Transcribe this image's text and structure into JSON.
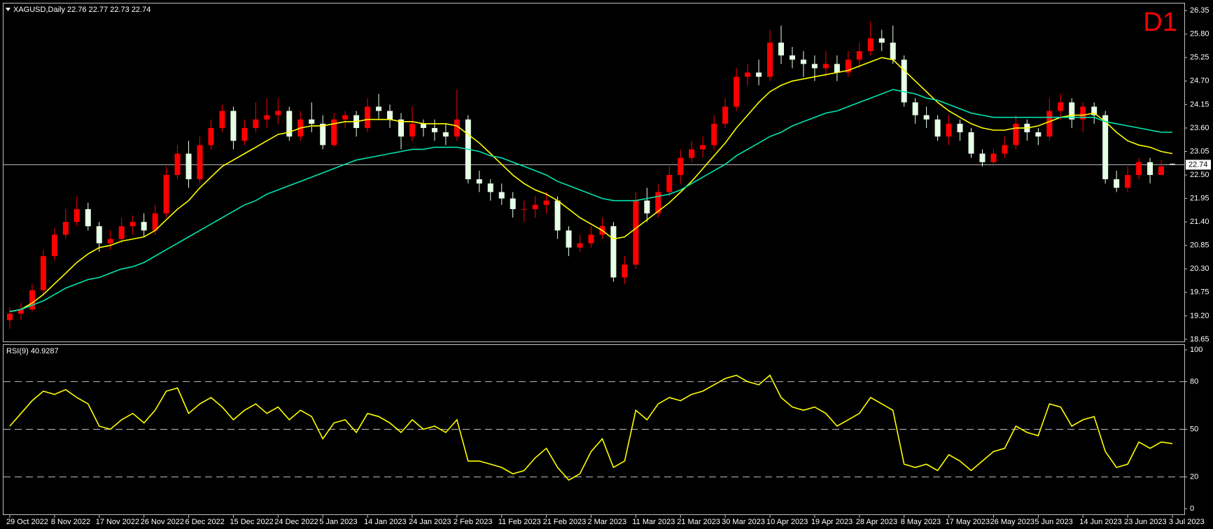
{
  "chart_data": [
    {
      "type": "candlestick",
      "title": "XAGUSD,Daily",
      "header_values": [
        22.76,
        22.77,
        22.73,
        22.74
      ],
      "timeframe": "D1",
      "up_color": "#ff0000",
      "down_color": "#e6ffe6",
      "last_price": 22.74,
      "ylim": [
        18.6,
        26.5
      ],
      "yticks": [
        18.65,
        {
          "value": 19.2,
          "label": "19.20"
        },
        19.75,
        {
          "value": 20.3,
          "label": "20.30"
        },
        20.85,
        {
          "value": 21.4,
          "label": "21.40"
        },
        21.95,
        {
          "value": 22.5,
          "label": "22.50"
        },
        23.05,
        {
          "value": 23.6,
          "label": "23.60"
        },
        24.15,
        {
          "value": 24.7,
          "label": "24.70"
        },
        25.25,
        {
          "value": 25.8,
          "label": "25.80"
        },
        26.35
      ],
      "categories": [
        "29 Oct 2022",
        null,
        null,
        null,
        "8 Nov 2022",
        null,
        null,
        null,
        "17 Nov 2022",
        null,
        null,
        null,
        "26 Nov 2022",
        null,
        null,
        null,
        "6 Dec 2022",
        null,
        null,
        null,
        "15 Dec 2022",
        null,
        null,
        null,
        "24 Dec 2022",
        null,
        null,
        null,
        "5 Jan 2023",
        null,
        null,
        null,
        "14 Jan 2023",
        null,
        null,
        null,
        "24 Jan 2023",
        null,
        null,
        null,
        "2 Feb 2023",
        null,
        null,
        null,
        "11 Feb 2023",
        null,
        null,
        null,
        "21 Feb 2023",
        null,
        null,
        null,
        "2 Mar 2023",
        null,
        null,
        null,
        "11 Mar 2023",
        null,
        null,
        null,
        "21 Mar 2023",
        null,
        null,
        null,
        "30 Mar 2023",
        null,
        null,
        null,
        "10 Apr 2023",
        null,
        null,
        null,
        "19 Apr 2023",
        null,
        null,
        null,
        "28 Apr 2023",
        null,
        null,
        null,
        "8 May 2023",
        null,
        null,
        null,
        "17 May 2023",
        null,
        null,
        null,
        "26 May 2023",
        null,
        null,
        null,
        "5 Jun 2023",
        null,
        null,
        null,
        "14 Jun 2023",
        null,
        null,
        null,
        "23 Jun 2023",
        null,
        null,
        null,
        "3 Jul 2023"
      ],
      "candles": [
        [
          19.1,
          19.4,
          18.9,
          19.25
        ],
        [
          19.25,
          19.5,
          19.1,
          19.35
        ],
        [
          19.35,
          19.95,
          19.3,
          19.8
        ],
        [
          19.8,
          20.75,
          19.7,
          20.6
        ],
        [
          20.6,
          21.25,
          20.5,
          21.1
        ],
        [
          21.1,
          21.7,
          21.0,
          21.4
        ],
        [
          21.4,
          22.0,
          21.3,
          21.7
        ],
        [
          21.7,
          21.85,
          21.2,
          21.3
        ],
        [
          21.3,
          21.4,
          20.7,
          20.9
        ],
        [
          20.9,
          21.2,
          20.75,
          21.0
        ],
        [
          21.0,
          21.5,
          20.9,
          21.3
        ],
        [
          21.3,
          21.55,
          21.1,
          21.4
        ],
        [
          21.4,
          21.6,
          21.05,
          21.2
        ],
        [
          21.2,
          21.8,
          21.1,
          21.6
        ],
        [
          21.6,
          22.7,
          21.5,
          22.5
        ],
        [
          22.5,
          23.2,
          22.4,
          23.0
        ],
        [
          23.0,
          23.3,
          22.2,
          22.4
        ],
        [
          22.4,
          23.4,
          22.3,
          23.2
        ],
        [
          23.2,
          23.8,
          23.1,
          23.6
        ],
        [
          23.6,
          24.15,
          23.5,
          24.0
        ],
        [
          24.0,
          24.1,
          23.1,
          23.3
        ],
        [
          23.3,
          23.8,
          23.2,
          23.6
        ],
        [
          23.6,
          24.2,
          23.5,
          23.8
        ],
        [
          23.8,
          24.3,
          23.6,
          23.9
        ],
        [
          23.9,
          24.3,
          23.7,
          24.0
        ],
        [
          24.0,
          24.1,
          23.3,
          23.4
        ],
        [
          23.4,
          24.0,
          23.3,
          23.8
        ],
        [
          23.8,
          24.2,
          23.5,
          23.7
        ],
        [
          23.7,
          23.9,
          23.1,
          23.2
        ],
        [
          23.2,
          23.95,
          23.15,
          23.8
        ],
        [
          23.8,
          24.0,
          23.6,
          23.9
        ],
        [
          23.9,
          24.0,
          23.4,
          23.6
        ],
        [
          23.6,
          24.3,
          23.5,
          24.1
        ],
        [
          24.1,
          24.4,
          23.8,
          24.0
        ],
        [
          24.0,
          24.15,
          23.6,
          23.8
        ],
        [
          23.8,
          23.95,
          23.1,
          23.4
        ],
        [
          23.4,
          24.1,
          23.3,
          23.7
        ],
        [
          23.7,
          23.8,
          23.4,
          23.6
        ],
        [
          23.6,
          23.8,
          23.3,
          23.5
        ],
        [
          23.5,
          23.7,
          23.2,
          23.4
        ],
        [
          23.4,
          24.5,
          23.3,
          23.8
        ],
        [
          23.8,
          23.9,
          22.3,
          22.4
        ],
        [
          22.4,
          22.6,
          22.1,
          22.3
        ],
        [
          22.3,
          22.4,
          21.9,
          22.1
        ],
        [
          22.1,
          22.3,
          21.8,
          21.95
        ],
        [
          21.95,
          22.1,
          21.5,
          21.7
        ],
        [
          21.7,
          21.9,
          21.4,
          21.7
        ],
        [
          21.7,
          22.0,
          21.5,
          21.8
        ],
        [
          21.8,
          22.1,
          21.6,
          21.9
        ],
        [
          21.9,
          22.0,
          21.0,
          21.2
        ],
        [
          21.2,
          21.3,
          20.6,
          20.8
        ],
        [
          20.8,
          21.1,
          20.7,
          20.9
        ],
        [
          20.9,
          21.3,
          20.8,
          21.1
        ],
        [
          21.1,
          21.5,
          21.0,
          21.3
        ],
        [
          21.3,
          21.4,
          20.0,
          20.1
        ],
        [
          20.1,
          20.6,
          19.95,
          20.4
        ],
        [
          20.4,
          22.1,
          20.3,
          21.9
        ],
        [
          21.9,
          22.2,
          21.4,
          21.6
        ],
        [
          21.6,
          22.3,
          21.5,
          22.1
        ],
        [
          22.1,
          22.7,
          22.0,
          22.5
        ],
        [
          22.5,
          23.1,
          22.3,
          22.9
        ],
        [
          22.9,
          23.3,
          22.8,
          23.1
        ],
        [
          23.1,
          23.4,
          22.9,
          23.2
        ],
        [
          23.2,
          23.9,
          23.1,
          23.7
        ],
        [
          23.7,
          24.3,
          23.6,
          24.1
        ],
        [
          24.1,
          25.0,
          24.0,
          24.8
        ],
        [
          24.8,
          25.1,
          24.6,
          24.9
        ],
        [
          24.9,
          25.2,
          24.6,
          24.8
        ],
        [
          24.8,
          25.9,
          24.7,
          25.6
        ],
        [
          25.6,
          26.0,
          25.1,
          25.3
        ],
        [
          25.3,
          25.5,
          25.0,
          25.2
        ],
        [
          25.2,
          25.4,
          24.8,
          25.1
        ],
        [
          25.1,
          25.3,
          24.7,
          25.0
        ],
        [
          25.0,
          25.4,
          24.8,
          25.1
        ],
        [
          25.1,
          25.3,
          24.7,
          24.9
        ],
        [
          24.9,
          25.4,
          24.8,
          25.2
        ],
        [
          25.2,
          25.6,
          25.0,
          25.4
        ],
        [
          25.4,
          26.1,
          25.3,
          25.7
        ],
        [
          25.7,
          25.9,
          25.4,
          25.6
        ],
        [
          25.6,
          26.0,
          25.1,
          25.2
        ],
        [
          25.2,
          25.3,
          24.1,
          24.2
        ],
        [
          24.2,
          24.3,
          23.7,
          23.9
        ],
        [
          23.9,
          24.1,
          23.6,
          23.8
        ],
        [
          23.8,
          23.9,
          23.3,
          23.4
        ],
        [
          23.4,
          23.9,
          23.2,
          23.7
        ],
        [
          23.7,
          23.8,
          23.3,
          23.5
        ],
        [
          23.5,
          23.6,
          22.9,
          23.0
        ],
        [
          23.0,
          23.1,
          22.7,
          22.8
        ],
        [
          22.8,
          23.1,
          22.7,
          23.0
        ],
        [
          23.0,
          23.4,
          22.9,
          23.2
        ],
        [
          23.2,
          23.9,
          23.1,
          23.7
        ],
        [
          23.7,
          23.8,
          23.3,
          23.5
        ],
        [
          23.5,
          23.6,
          23.2,
          23.4
        ],
        [
          23.4,
          24.3,
          23.3,
          24.0
        ],
        [
          24.0,
          24.4,
          23.8,
          24.2
        ],
        [
          24.2,
          24.3,
          23.6,
          23.8
        ],
        [
          23.8,
          24.2,
          23.5,
          24.1
        ],
        [
          24.1,
          24.2,
          23.7,
          23.9
        ],
        [
          23.9,
          24.0,
          22.3,
          22.4
        ],
        [
          22.4,
          22.6,
          22.1,
          22.2
        ],
        [
          22.2,
          22.7,
          22.1,
          22.5
        ],
        [
          22.5,
          22.9,
          22.4,
          22.8
        ],
        [
          22.8,
          22.9,
          22.3,
          22.5
        ],
        [
          22.5,
          22.85,
          22.5,
          22.7
        ],
        [
          22.76,
          22.77,
          22.73,
          22.74
        ]
      ],
      "series": [
        {
          "color": "#ffff00",
          "values": [
            19.3,
            19.35,
            19.5,
            19.7,
            19.95,
            20.2,
            20.45,
            20.65,
            20.8,
            20.85,
            20.95,
            21.0,
            21.05,
            21.2,
            21.45,
            21.7,
            21.9,
            22.2,
            22.45,
            22.7,
            22.85,
            23.0,
            23.15,
            23.3,
            23.45,
            23.5,
            23.6,
            23.65,
            23.65,
            23.7,
            23.75,
            23.75,
            23.8,
            23.8,
            23.8,
            23.75,
            23.75,
            23.7,
            23.7,
            23.7,
            23.65,
            23.45,
            23.25,
            23.0,
            22.75,
            22.5,
            22.3,
            22.15,
            22.05,
            21.9,
            21.7,
            21.5,
            21.35,
            21.2,
            21.0,
            21.05,
            21.25,
            21.45,
            21.65,
            21.85,
            22.1,
            22.35,
            22.65,
            22.95,
            23.25,
            23.6,
            23.9,
            24.2,
            24.45,
            24.6,
            24.7,
            24.75,
            24.8,
            24.85,
            24.9,
            24.95,
            25.05,
            25.15,
            25.25,
            25.2,
            24.95,
            24.7,
            24.45,
            24.2,
            24.0,
            23.85,
            23.7,
            23.6,
            23.55,
            23.55,
            23.6,
            23.6,
            23.65,
            23.75,
            23.85,
            23.9,
            23.9,
            23.95,
            23.75,
            23.5,
            23.3,
            23.2,
            23.15,
            23.05,
            23.0
          ]
        },
        {
          "color": "#00e6b0",
          "values": [
            19.3,
            19.35,
            19.45,
            19.55,
            19.7,
            19.85,
            19.95,
            20.05,
            20.1,
            20.2,
            20.3,
            20.35,
            20.45,
            20.6,
            20.75,
            20.9,
            21.05,
            21.2,
            21.35,
            21.5,
            21.65,
            21.8,
            21.9,
            22.05,
            22.15,
            22.25,
            22.35,
            22.45,
            22.55,
            22.65,
            22.75,
            22.85,
            22.9,
            22.95,
            23.0,
            23.05,
            23.1,
            23.1,
            23.15,
            23.15,
            23.15,
            23.1,
            23.05,
            22.95,
            22.9,
            22.8,
            22.7,
            22.6,
            22.5,
            22.35,
            22.25,
            22.15,
            22.05,
            21.95,
            21.9,
            21.9,
            21.9,
            21.95,
            22.0,
            22.05,
            22.15,
            22.3,
            22.45,
            22.6,
            22.75,
            22.95,
            23.1,
            23.25,
            23.4,
            23.5,
            23.65,
            23.75,
            23.85,
            23.95,
            24.0,
            24.1,
            24.2,
            24.3,
            24.4,
            24.5,
            24.45,
            24.4,
            24.3,
            24.25,
            24.15,
            24.05,
            23.95,
            23.9,
            23.85,
            23.85,
            23.85,
            23.85,
            23.85,
            23.85,
            23.85,
            23.85,
            23.85,
            23.85,
            23.75,
            23.7,
            23.65,
            23.6,
            23.55,
            23.5,
            23.5
          ]
        }
      ]
    },
    {
      "type": "line",
      "title": "RSI(9)",
      "value": 40.9287,
      "ylim": [
        0,
        100
      ],
      "yticks": [
        0,
        20,
        50,
        80,
        100
      ],
      "levels": [
        20,
        50,
        80
      ],
      "series": [
        {
          "color": "#ffff00",
          "values": [
            52,
            60,
            68,
            74,
            72,
            75,
            70,
            66,
            52,
            50,
            56,
            60,
            54,
            62,
            74,
            76,
            60,
            66,
            70,
            64,
            56,
            62,
            66,
            60,
            64,
            56,
            62,
            58,
            44,
            54,
            56,
            48,
            60,
            58,
            54,
            48,
            56,
            50,
            52,
            48,
            56,
            30,
            30,
            28,
            26,
            22,
            24,
            32,
            38,
            26,
            18,
            22,
            36,
            44,
            26,
            30,
            62,
            56,
            66,
            70,
            68,
            72,
            74,
            78,
            82,
            84,
            80,
            78,
            84,
            70,
            64,
            62,
            64,
            60,
            52,
            56,
            60,
            70,
            66,
            62,
            28,
            26,
            28,
            24,
            34,
            30,
            24,
            30,
            36,
            38,
            52,
            48,
            46,
            66,
            64,
            52,
            56,
            58,
            36,
            26,
            28,
            42,
            38,
            42,
            41
          ]
        }
      ]
    }
  ]
}
